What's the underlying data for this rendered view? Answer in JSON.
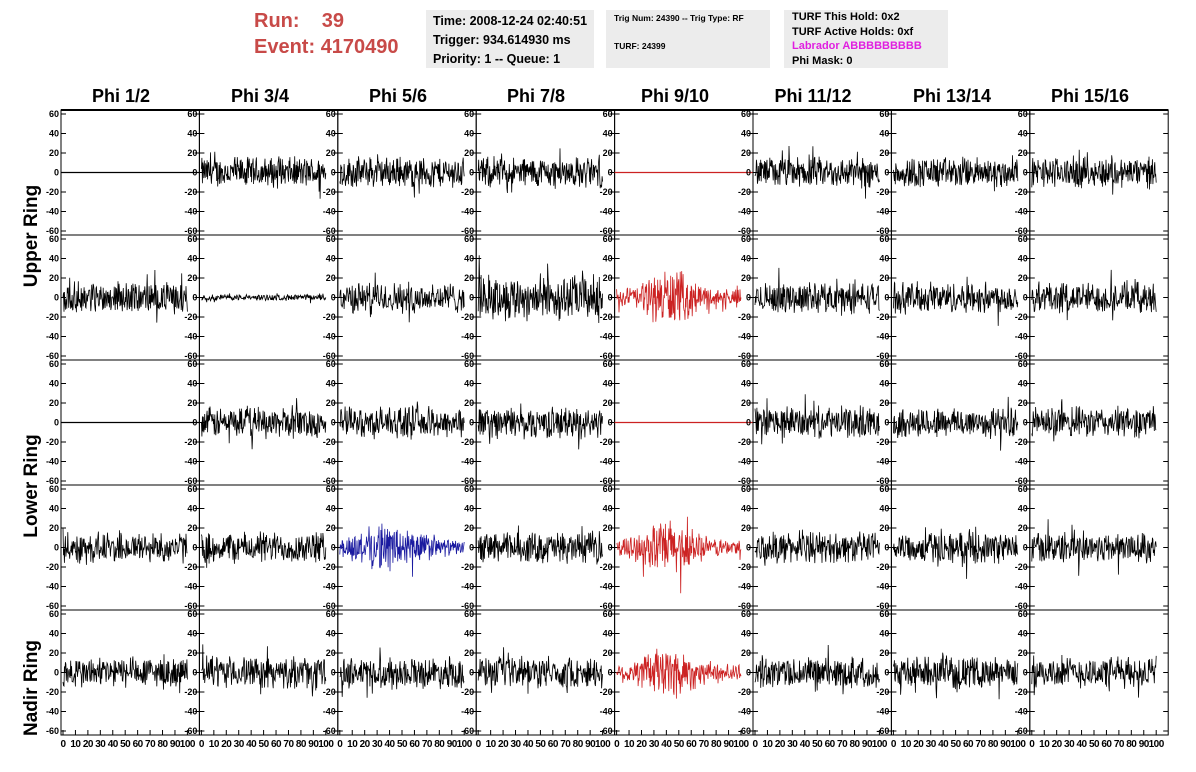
{
  "header": {
    "run_label": "Run:",
    "run_value": "39",
    "event_label": "Event:",
    "event_value": "4170490"
  },
  "info_time": {
    "time": "Time: 2008-12-24 02:40:51",
    "trigger": "Trigger: 934.614930 ms",
    "priority": "Priority: 1 -- Queue: 1"
  },
  "info_trig": {
    "trig": "Trig Num: 24390 -- Trig Type: RF",
    "turf": "TURF: 24399"
  },
  "info_turf": {
    "this_hold": "TURF This Hold: 0x2",
    "active_holds": "TURF Active Holds: 0xf",
    "labrador": "Labrador ABBBBBBBBB",
    "phi_mask": "Phi Mask: 0"
  },
  "columns": [
    "Phi 1/2",
    "Phi 3/4",
    "Phi 5/6",
    "Phi 7/8",
    "Phi 9/10",
    "Phi 11/12",
    "Phi 13/14",
    "Phi 15/16"
  ],
  "ring_labels": {
    "upper": "Upper Ring",
    "lower": "Lower Ring",
    "nadir": "Nadir Ring"
  },
  "colors": {
    "run_text": "#c84a48",
    "labrador_text": "#e020e0",
    "trace_default": "#000000",
    "trace_red": "#cc2222",
    "trace_blue": "#1a1aa0",
    "info_box_bg": "#ececec"
  },
  "chart_data": {
    "type": "line",
    "xlim": [
      0,
      100
    ],
    "ylim": [
      -60,
      60
    ],
    "y_ticks": [
      60,
      40,
      20,
      0,
      -20,
      -40,
      -60
    ],
    "x_tick_labels": [
      "0",
      "10",
      "20",
      "30",
      "40",
      "50",
      "60",
      "70",
      "80",
      "90",
      "100"
    ],
    "rows": 5,
    "cols": 8,
    "panels": [
      [
        "flat",
        "noise",
        "noise",
        "noise",
        "flat-red",
        "noise",
        "noise",
        "noise"
      ],
      [
        "noise",
        "small",
        "noise",
        "noise-large",
        "burst-red",
        "noise",
        "noise",
        "noise"
      ],
      [
        "flat",
        "noise",
        "noise",
        "noise",
        "flat-red",
        "noise",
        "noise",
        "noise"
      ],
      [
        "noise",
        "noise",
        "blue",
        "noise",
        "burst-red",
        "noise",
        "noise",
        "noise"
      ],
      [
        "noise",
        "noise",
        "noise",
        "noise",
        "burst-red",
        "noise",
        "noise",
        "noise"
      ]
    ]
  }
}
